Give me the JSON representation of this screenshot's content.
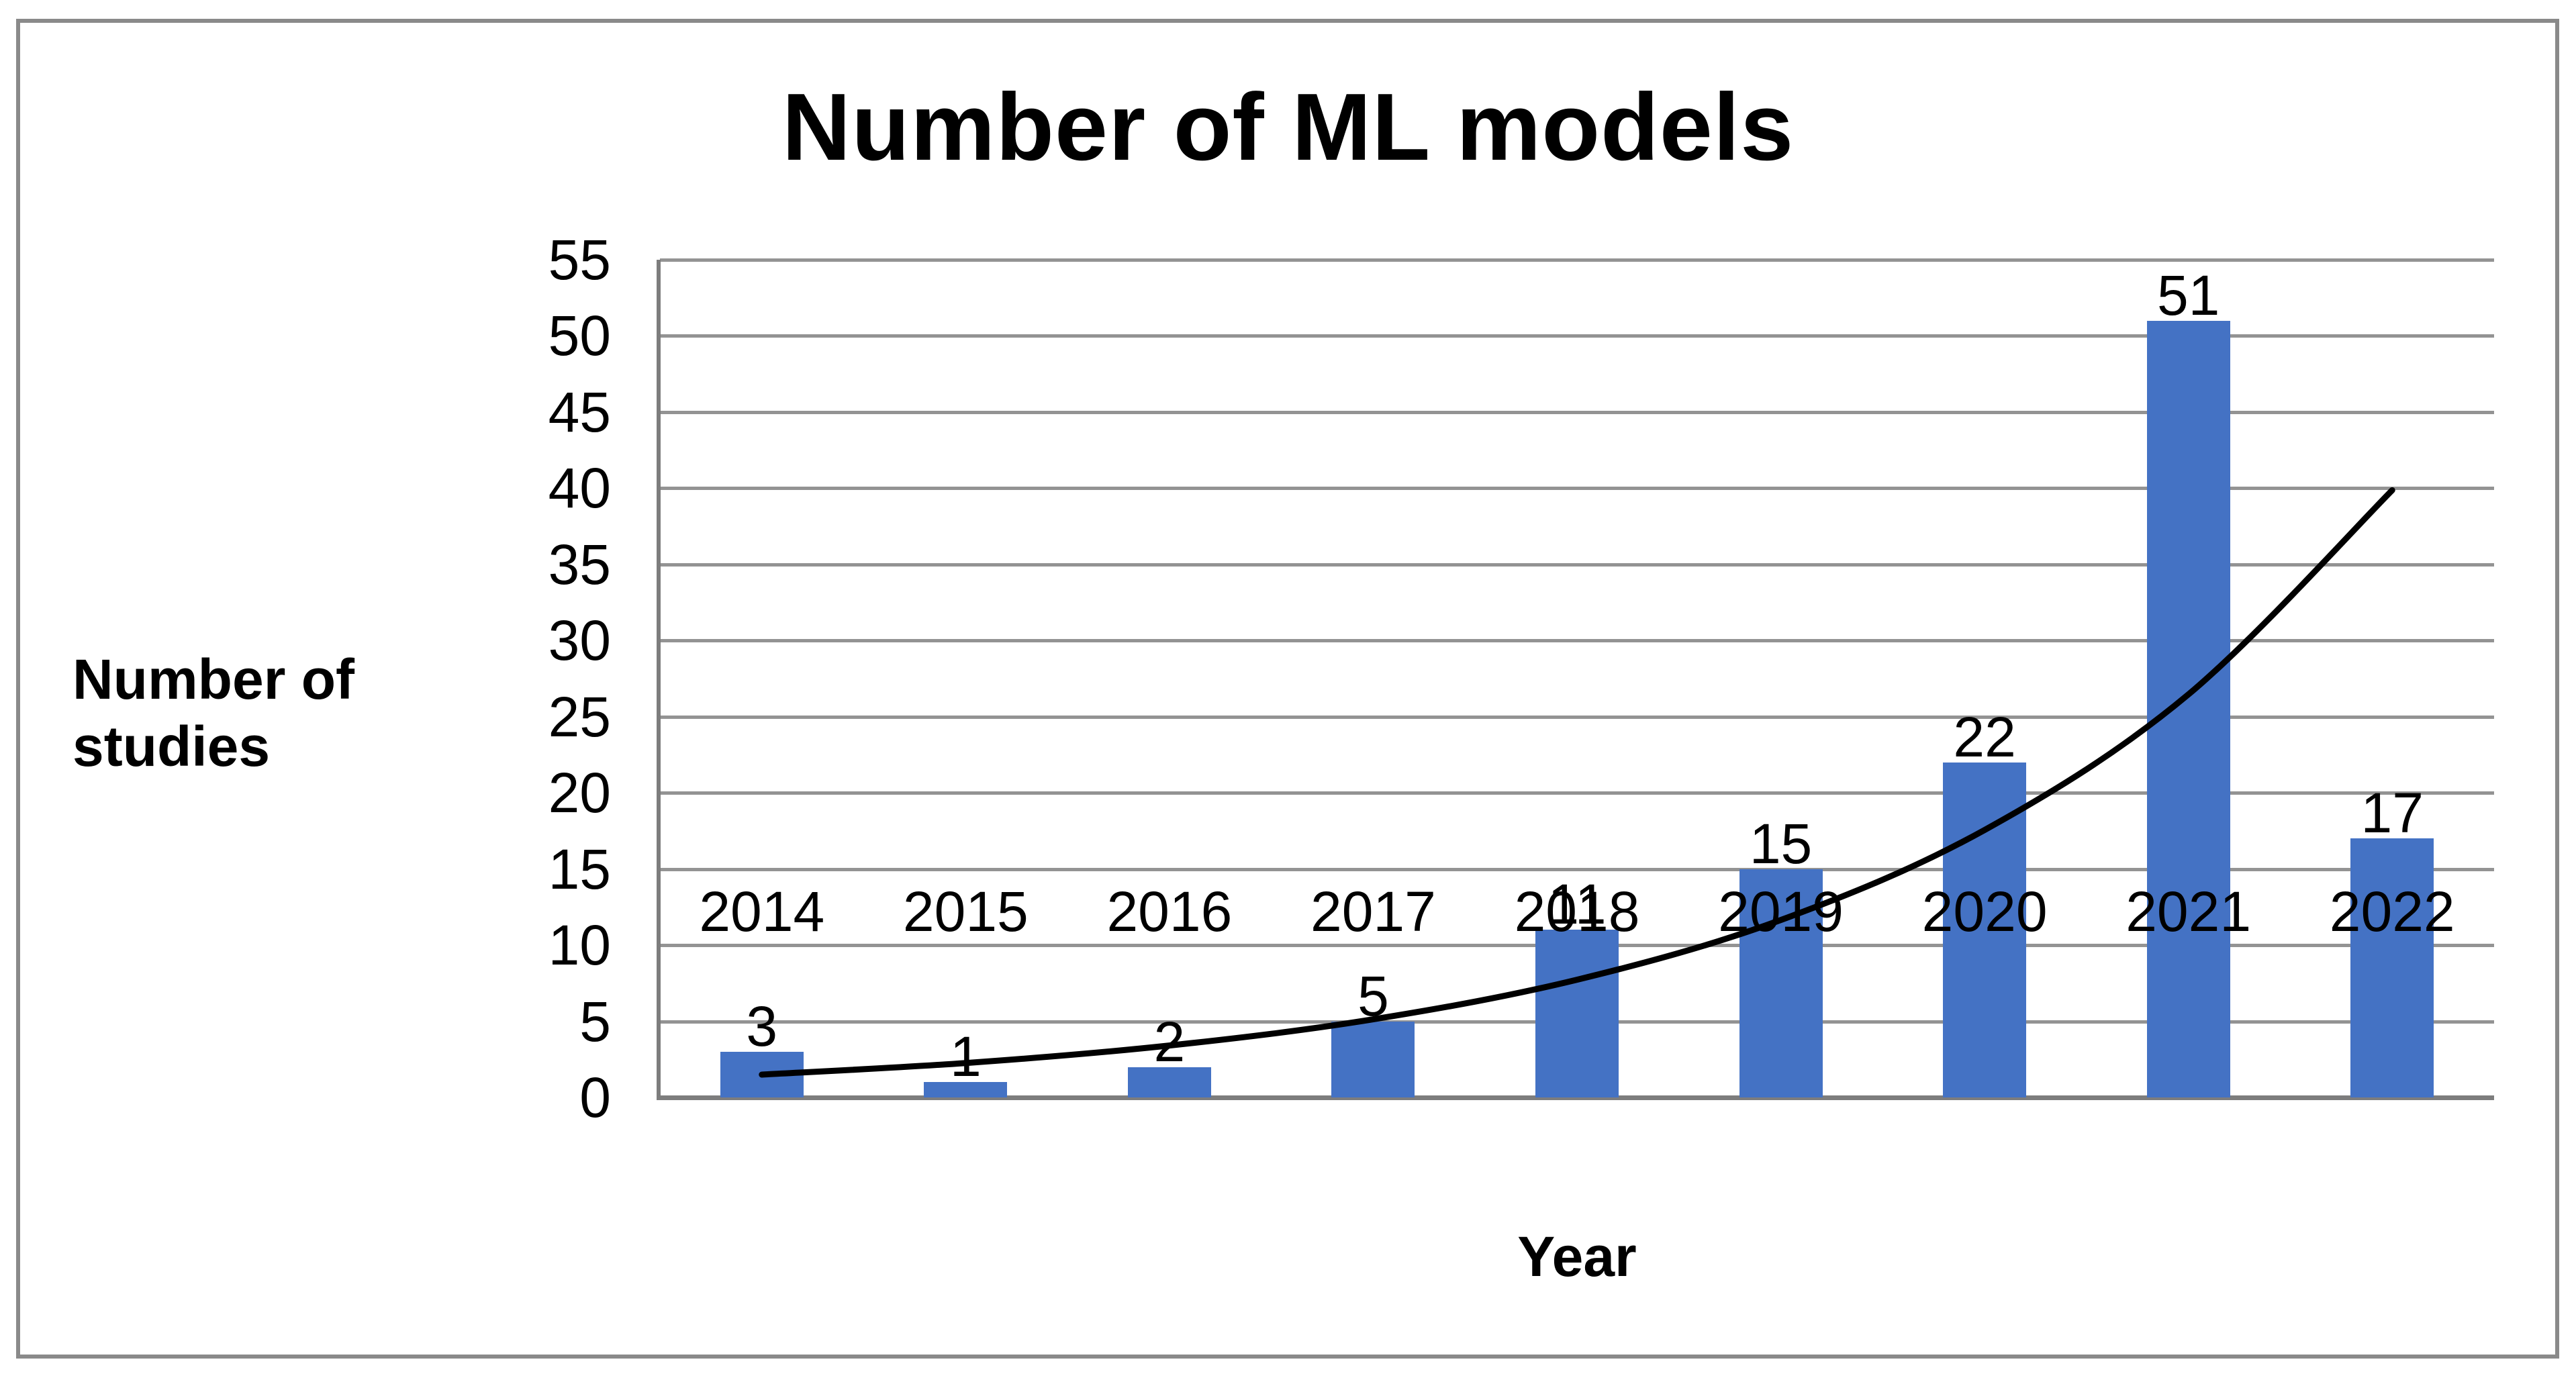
{
  "chart_data": {
    "type": "bar",
    "title": "Number of ML models",
    "xlabel": "Year",
    "ylabel": "Number of studies",
    "categories": [
      "2014",
      "2015",
      "2016",
      "2017",
      "2018",
      "2019",
      "2020",
      "2021",
      "2022"
    ],
    "values": [
      3,
      1,
      2,
      5,
      11,
      15,
      22,
      51,
      17
    ],
    "data_labels": [
      "3",
      "1",
      "2",
      "5",
      "11",
      "15",
      "22",
      "51",
      "17"
    ],
    "ylim": [
      0,
      55
    ],
    "ytick_step": 5,
    "yticks": [
      0,
      5,
      10,
      15,
      20,
      25,
      30,
      35,
      40,
      45,
      50,
      55
    ],
    "grid": true,
    "legend": false,
    "trendline": {
      "type": "exponential",
      "color": "#000000",
      "values": [
        1.5,
        2.26,
        3.41,
        5.13,
        7.73,
        11.65,
        17.56,
        26.46,
        39.87
      ]
    },
    "colors": {
      "bar": "#4472C4",
      "gridline": "#939393",
      "axis": "#7d7d7d",
      "frame": "#8a8a8a",
      "text": "#000000"
    }
  }
}
